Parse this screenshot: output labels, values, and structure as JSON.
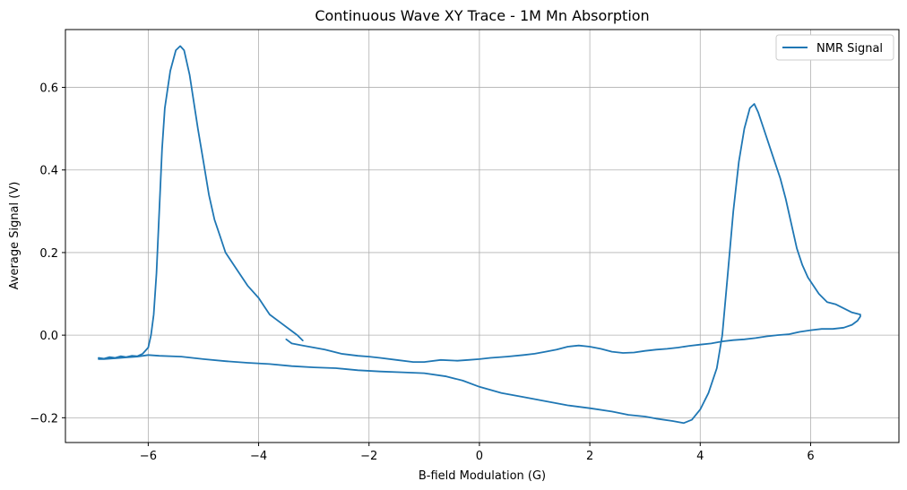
{
  "chart_data": {
    "type": "line",
    "title": "Continuous Wave XY Trace - 1M Mn Absorption",
    "xlabel": "B-field Modulation (G)",
    "ylabel": "Average Signal (V)",
    "xlim": [
      -7.5,
      7.6
    ],
    "ylim": [
      -0.26,
      0.74
    ],
    "xticks": [
      -6,
      -4,
      -2,
      0,
      2,
      4,
      6
    ],
    "yticks": [
      -0.2,
      0.0,
      0.2,
      0.4,
      0.6
    ],
    "xtick_labels": [
      "−6",
      "−4",
      "−2",
      "0",
      "2",
      "4",
      "6"
    ],
    "ytick_labels": [
      "−0.2",
      "0.0",
      "0.2",
      "0.4",
      "0.6"
    ],
    "grid": true,
    "legend_position": "top-right",
    "series": [
      {
        "name": "NMR Signal",
        "color": "#1f77b4",
        "segments": [
          [
            [
              -6.9,
              -0.055
            ],
            [
              -6.8,
              -0.057
            ],
            [
              -6.7,
              -0.053
            ],
            [
              -6.6,
              -0.055
            ],
            [
              -6.5,
              -0.051
            ],
            [
              -6.4,
              -0.053
            ],
            [
              -6.3,
              -0.05
            ],
            [
              -6.2,
              -0.051
            ],
            [
              -6.1,
              -0.045
            ],
            [
              -6.0,
              -0.03
            ],
            [
              -5.95,
              0.0
            ],
            [
              -5.9,
              0.05
            ],
            [
              -5.85,
              0.15
            ],
            [
              -5.8,
              0.3
            ],
            [
              -5.75,
              0.45
            ],
            [
              -5.7,
              0.55
            ],
            [
              -5.6,
              0.64
            ],
            [
              -5.5,
              0.69
            ],
            [
              -5.42,
              0.7
            ],
            [
              -5.35,
              0.69
            ],
            [
              -5.25,
              0.63
            ],
            [
              -5.1,
              0.5
            ],
            [
              -5.0,
              0.42
            ],
            [
              -4.9,
              0.34
            ],
            [
              -4.8,
              0.28
            ],
            [
              -4.7,
              0.24
            ],
            [
              -4.6,
              0.2
            ],
            [
              -4.4,
              0.16
            ],
            [
              -4.2,
              0.12
            ],
            [
              -4.0,
              0.09
            ],
            [
              -3.9,
              0.07
            ],
            [
              -3.8,
              0.05
            ],
            [
              -3.6,
              0.03
            ],
            [
              -3.4,
              0.01
            ],
            [
              -3.3,
              0.0
            ],
            [
              -3.2,
              -0.013
            ]
          ],
          [
            [
              -3.5,
              -0.01
            ],
            [
              -3.4,
              -0.02
            ],
            [
              -3.2,
              -0.025
            ],
            [
              -3.0,
              -0.03
            ],
            [
              -2.8,
              -0.035
            ],
            [
              -2.5,
              -0.045
            ],
            [
              -2.2,
              -0.05
            ],
            [
              -2.0,
              -0.052
            ],
            [
              -1.8,
              -0.055
            ],
            [
              -1.5,
              -0.06
            ],
            [
              -1.2,
              -0.065
            ],
            [
              -1.0,
              -0.065
            ],
            [
              -0.7,
              -0.06
            ],
            [
              -0.4,
              -0.062
            ],
            [
              -0.2,
              -0.06
            ],
            [
              0.0,
              -0.058
            ],
            [
              0.2,
              -0.055
            ],
            [
              0.5,
              -0.052
            ],
            [
              0.8,
              -0.048
            ],
            [
              1.0,
              -0.045
            ],
            [
              1.2,
              -0.04
            ],
            [
              1.4,
              -0.035
            ],
            [
              1.6,
              -0.028
            ],
            [
              1.8,
              -0.025
            ],
            [
              2.0,
              -0.028
            ],
            [
              2.2,
              -0.033
            ],
            [
              2.4,
              -0.04
            ],
            [
              2.6,
              -0.043
            ],
            [
              2.8,
              -0.042
            ],
            [
              3.0,
              -0.038
            ],
            [
              3.2,
              -0.035
            ],
            [
              3.4,
              -0.033
            ],
            [
              3.6,
              -0.03
            ],
            [
              3.8,
              -0.026
            ],
            [
              4.0,
              -0.023
            ],
            [
              4.2,
              -0.02
            ],
            [
              4.4,
              -0.015
            ],
            [
              4.6,
              -0.012
            ],
            [
              4.8,
              -0.01
            ],
            [
              5.0,
              -0.007
            ],
            [
              5.2,
              -0.003
            ],
            [
              5.4,
              0.0
            ],
            [
              5.6,
              0.002
            ],
            [
              5.8,
              0.008
            ],
            [
              6.0,
              0.012
            ],
            [
              6.2,
              0.015
            ],
            [
              6.4,
              0.015
            ],
            [
              6.6,
              0.018
            ],
            [
              6.75,
              0.025
            ],
            [
              6.85,
              0.035
            ],
            [
              6.9,
              0.045
            ],
            [
              6.9,
              0.05
            ],
            [
              6.75,
              0.055
            ],
            [
              6.6,
              0.065
            ],
            [
              6.45,
              0.075
            ],
            [
              6.3,
              0.08
            ],
            [
              6.15,
              0.1
            ],
            [
              6.05,
              0.12
            ],
            [
              5.95,
              0.14
            ],
            [
              5.85,
              0.17
            ],
            [
              5.75,
              0.21
            ],
            [
              5.65,
              0.27
            ],
            [
              5.55,
              0.33
            ],
            [
              5.45,
              0.38
            ],
            [
              5.3,
              0.44
            ],
            [
              5.15,
              0.5
            ],
            [
              5.05,
              0.54
            ],
            [
              4.98,
              0.56
            ],
            [
              4.9,
              0.55
            ],
            [
              4.8,
              0.5
            ],
            [
              4.7,
              0.42
            ],
            [
              4.6,
              0.3
            ],
            [
              4.5,
              0.15
            ],
            [
              4.4,
              0.0
            ],
            [
              4.3,
              -0.08
            ],
            [
              4.15,
              -0.14
            ],
            [
              4.0,
              -0.18
            ],
            [
              3.85,
              -0.205
            ],
            [
              3.7,
              -0.213
            ],
            [
              3.5,
              -0.208
            ],
            [
              3.2,
              -0.202
            ],
            [
              3.0,
              -0.197
            ],
            [
              2.7,
              -0.193
            ],
            [
              2.4,
              -0.185
            ],
            [
              2.0,
              -0.177
            ],
            [
              1.6,
              -0.17
            ],
            [
              1.2,
              -0.16
            ],
            [
              0.8,
              -0.15
            ],
            [
              0.4,
              -0.14
            ],
            [
              0.0,
              -0.125
            ],
            [
              -0.3,
              -0.11
            ],
            [
              -0.6,
              -0.1
            ],
            [
              -1.0,
              -0.092
            ],
            [
              -1.4,
              -0.09
            ],
            [
              -1.8,
              -0.088
            ],
            [
              -2.2,
              -0.085
            ],
            [
              -2.6,
              -0.08
            ],
            [
              -3.0,
              -0.078
            ],
            [
              -3.4,
              -0.075
            ],
            [
              -3.8,
              -0.07
            ],
            [
              -4.2,
              -0.067
            ],
            [
              -4.6,
              -0.063
            ],
            [
              -5.0,
              -0.058
            ],
            [
              -5.4,
              -0.052
            ],
            [
              -5.8,
              -0.05
            ],
            [
              -6.0,
              -0.048
            ],
            [
              -6.2,
              -0.052
            ],
            [
              -6.4,
              -0.054
            ],
            [
              -6.6,
              -0.056
            ],
            [
              -6.8,
              -0.058
            ],
            [
              -6.9,
              -0.058
            ]
          ]
        ]
      }
    ]
  }
}
